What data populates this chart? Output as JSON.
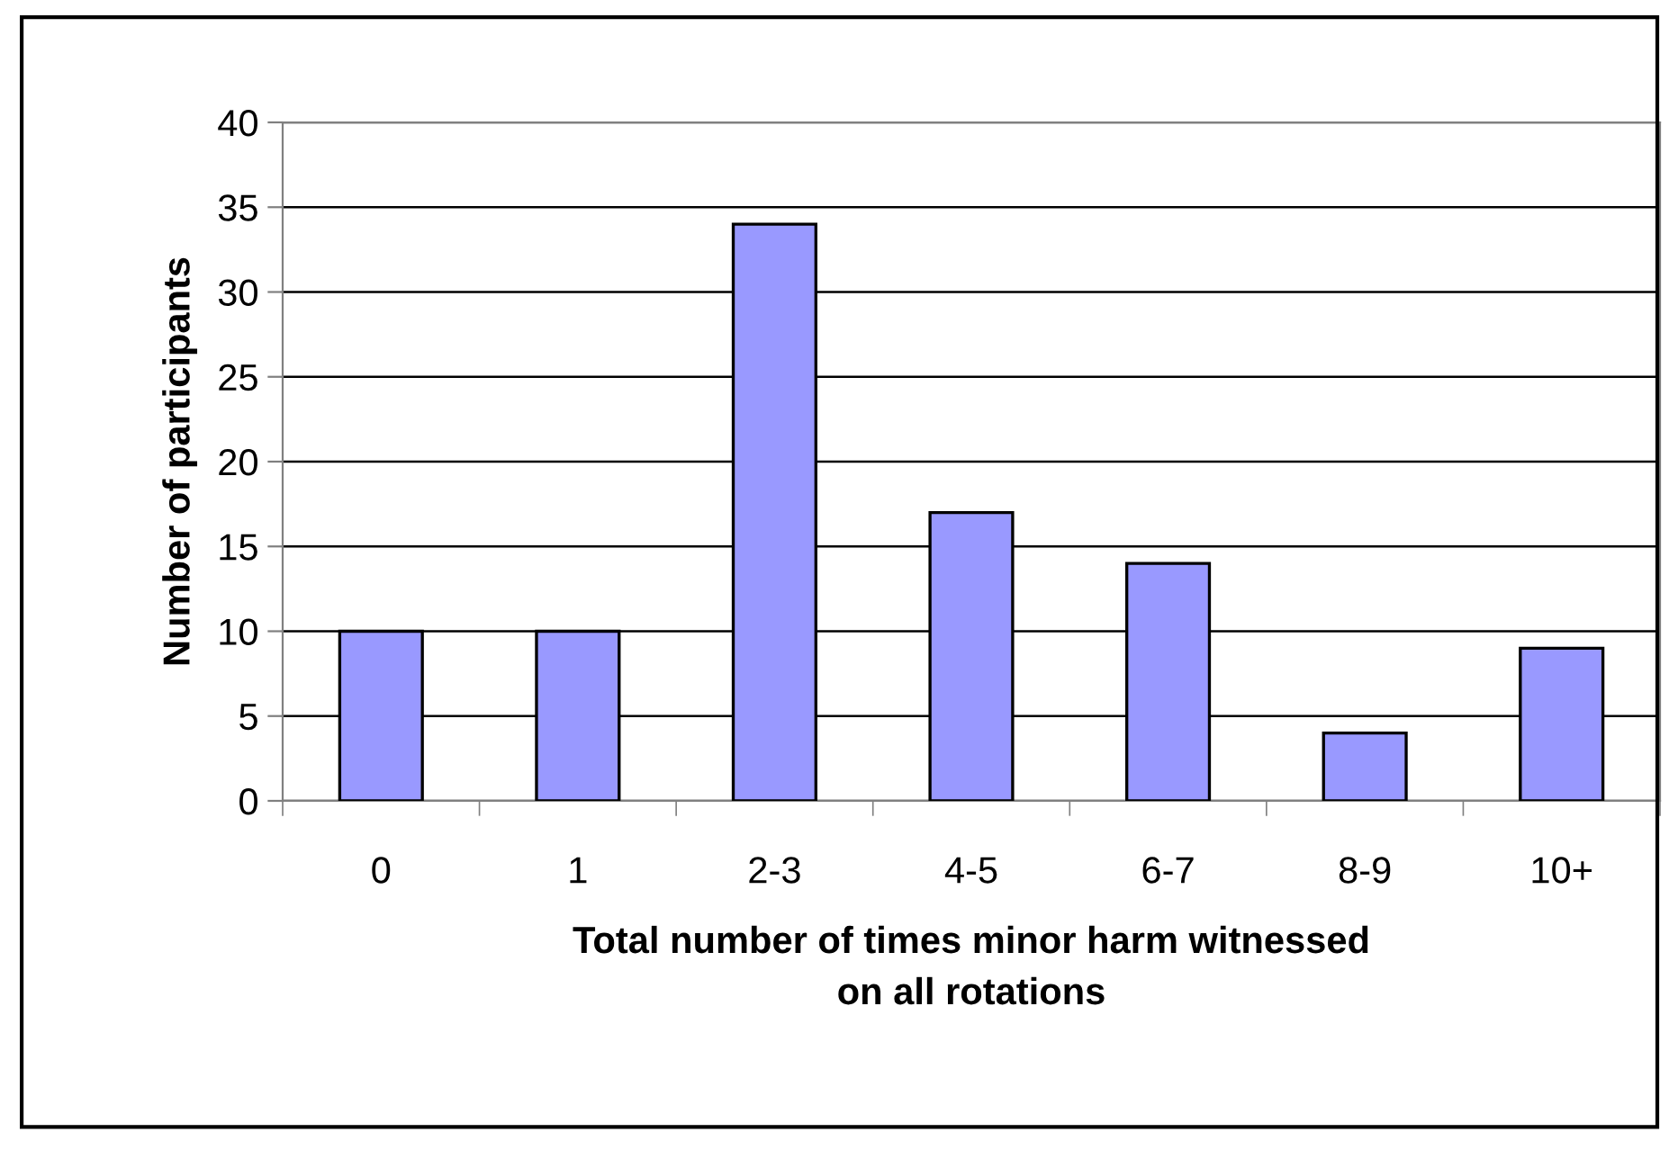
{
  "chart_data": {
    "type": "bar",
    "xlabel": "Total number of times minor harm witnessed\non all rotations",
    "ylabel": "Number of participants",
    "categories": [
      "0",
      "1",
      "2-3",
      "4-5",
      "6-7",
      "8-9",
      "10+"
    ],
    "values": [
      10,
      10,
      34,
      17,
      14,
      4,
      9
    ],
    "color": "#9999ff",
    "ylim": [
      0,
      40
    ],
    "yticks": [
      0,
      5,
      10,
      15,
      20,
      25,
      30,
      35,
      40
    ],
    "grid": "y"
  }
}
